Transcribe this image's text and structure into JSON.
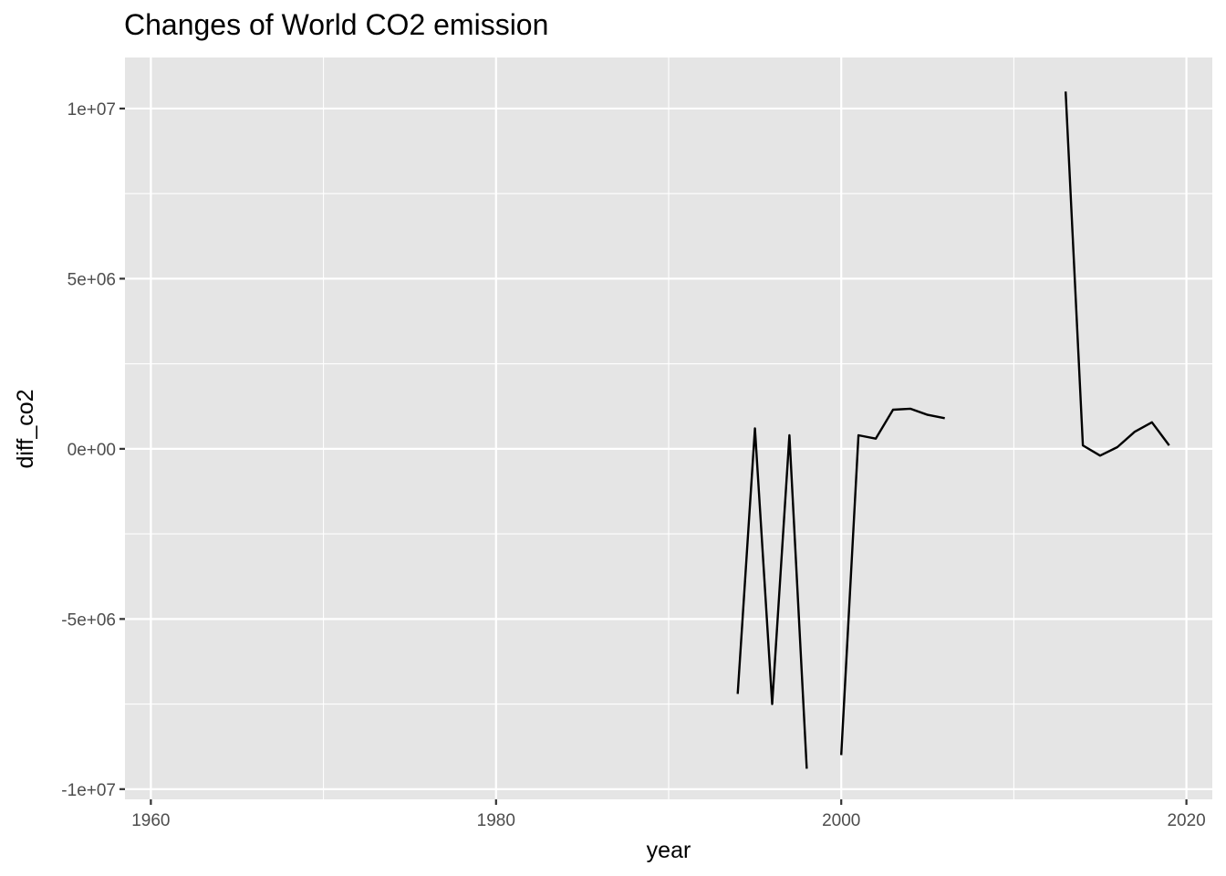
{
  "chart_data": {
    "type": "line",
    "title": "Changes of World CO2 emission",
    "xlabel": "year",
    "ylabel": "diff_co2",
    "xlim": [
      1958.5,
      2021.5
    ],
    "ylim": [
      -10300000,
      11500000
    ],
    "x_ticks": [
      1960,
      1980,
      2000,
      2020
    ],
    "x_tick_labels": [
      "1960",
      "1980",
      "2000",
      "2020"
    ],
    "y_ticks": [
      -10000000,
      -5000000,
      0,
      5000000,
      10000000
    ],
    "y_tick_labels": [
      "-1e+07",
      "-5e+06",
      "0e+00",
      "5e+06",
      "1e+07"
    ],
    "grid": true,
    "line_color": "#000000",
    "panel_color": "#e5e5e5",
    "grid_color": "#ffffff",
    "segments": [
      {
        "x": [
          1994,
          1995,
          1996,
          1997,
          1998
        ],
        "y": [
          -7200000,
          600000,
          -7500000,
          400000,
          -9400000
        ]
      },
      {
        "x": [
          2000,
          2001,
          2002,
          2003,
          2004,
          2005,
          2006
        ],
        "y": [
          -9000000,
          400000,
          300000,
          1150000,
          1180000,
          1000000,
          900000
        ]
      },
      {
        "x": [
          2013,
          2014,
          2015,
          2016,
          2017,
          2018,
          2019
        ],
        "y": [
          10500000,
          100000,
          -200000,
          50000,
          500000,
          780000,
          100000
        ]
      }
    ]
  }
}
